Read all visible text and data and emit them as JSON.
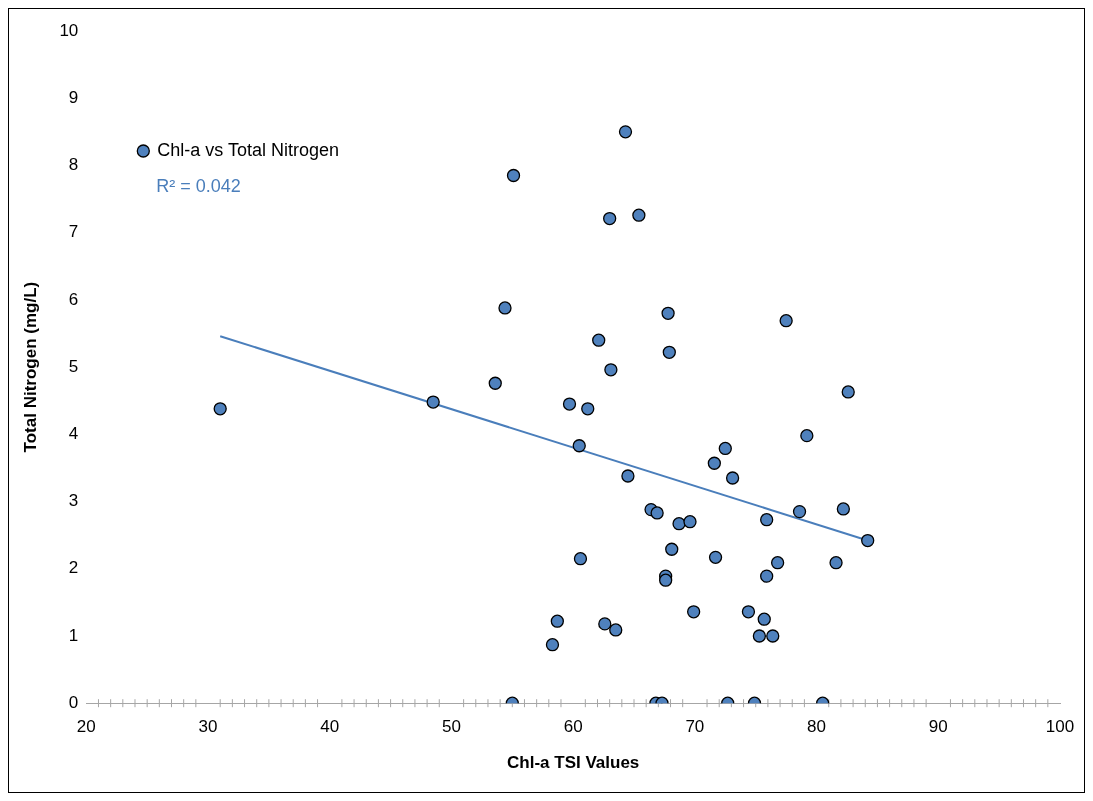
{
  "chart_data": {
    "type": "scatter",
    "xlabel": "Chl-a TSI Values",
    "ylabel": "Total Nitrogen (mg/L)",
    "xlim": [
      20,
      100
    ],
    "xticks": [
      20,
      30,
      40,
      50,
      60,
      70,
      80,
      90,
      100
    ],
    "ylim": [
      0,
      10
    ],
    "yticks": [
      0,
      1,
      2,
      3,
      4,
      5,
      6,
      7,
      8,
      9,
      10
    ],
    "grid": false,
    "legend": "top left",
    "annotations": [
      "R² = 0.042"
    ],
    "series": [
      {
        "name": "Chl-a vs Total Nitrogen",
        "marker": "circle",
        "color": "#4f81bd",
        "x": [
          31.0,
          48.5,
          53.6,
          54.4,
          55.1,
          55.0,
          58.3,
          58.7,
          59.7,
          60.5,
          60.6,
          61.2,
          62.1,
          62.6,
          63.0,
          63.1,
          63.5,
          64.3,
          64.5,
          65.4,
          66.4,
          66.8,
          66.9,
          67.3,
          67.6,
          67.6,
          67.8,
          67.9,
          68.1,
          68.7,
          69.6,
          69.9,
          71.6,
          71.7,
          72.5,
          72.7,
          73.1,
          74.4,
          74.9,
          75.3,
          75.7,
          75.9,
          75.9,
          76.4,
          76.8,
          77.5,
          78.6,
          79.2,
          80.5,
          81.6,
          82.2,
          82.6,
          84.2
        ],
        "values": [
          4.38,
          4.48,
          4.76,
          5.88,
          7.85,
          0,
          0.87,
          1.22,
          4.45,
          3.83,
          2.15,
          4.38,
          5.4,
          1.18,
          7.21,
          4.96,
          1.09,
          8.5,
          3.38,
          7.26,
          2.88,
          0,
          2.83,
          0,
          1.89,
          1.83,
          5.8,
          5.22,
          2.29,
          2.67,
          2.7,
          1.36,
          3.57,
          2.17,
          3.79,
          0,
          3.35,
          1.36,
          0,
          1.0,
          1.25,
          2.73,
          1.89,
          1.0,
          2.09,
          5.69,
          2.85,
          3.98,
          0,
          2.09,
          2.89,
          4.63,
          2.42
        ]
      },
      {
        "type": "line",
        "marker": "none",
        "color": "#4a7ebb",
        "x": [
          31.0,
          84.2
        ],
        "values": [
          5.46,
          2.42
        ]
      }
    ]
  }
}
